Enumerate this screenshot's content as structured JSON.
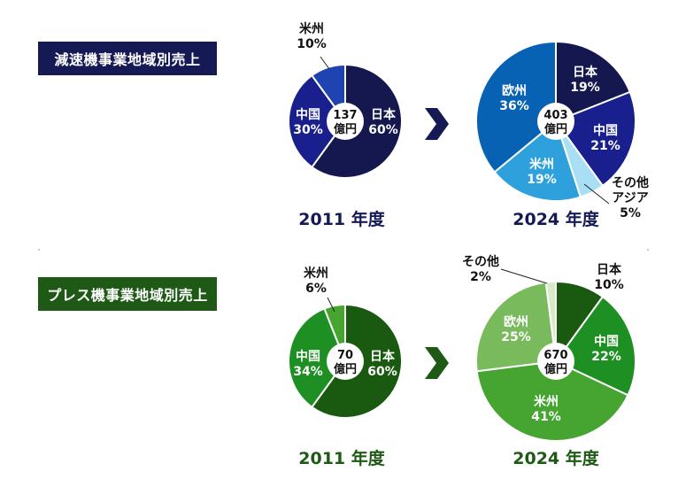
{
  "sections": {
    "top_title": "減速機事業地域別売上",
    "bottom_title": "プレス機事業地域別売上"
  },
  "colors": {
    "navy_dark": "#15174f",
    "navy_mid": "#1a1f8e",
    "blue_mid": "#2043b2",
    "blue_strong": "#0762b4",
    "blue_light": "#2ea1dc",
    "blue_pale": "#a9dff4",
    "green_dark": "#1a5a10",
    "green_mid": "#1e8f22",
    "green_bright": "#46a530",
    "green_soft": "#79ba5c",
    "green_pale": "#d6ecc5",
    "arrow_top": "#151a55",
    "arrow_bottom": "#1e5a16"
  },
  "chart_data": [
    {
      "type": "pie",
      "center_label": [
        "137",
        "億円"
      ],
      "year_label": "2011 年度",
      "slices": [
        {
          "name": "日本",
          "label": "60%",
          "value": 60,
          "color": "#15174f"
        },
        {
          "name": "中国",
          "label": "30%",
          "value": 30,
          "color": "#1a1f8e"
        },
        {
          "name": "米州",
          "label": "10%",
          "value": 10,
          "color": "#2043b2"
        }
      ]
    },
    {
      "type": "pie",
      "center_label": [
        "403",
        "億円"
      ],
      "year_label": "2024 年度",
      "slices": [
        {
          "name": "日本",
          "label": "19%",
          "value": 19,
          "color": "#15174f"
        },
        {
          "name": "中国",
          "label": "21%",
          "value": 21,
          "color": "#1a1f8e"
        },
        {
          "name": "その他アジア",
          "label": "5%",
          "value": 5,
          "color": "#a9dff4"
        },
        {
          "name": "米州",
          "label": "19%",
          "value": 19,
          "color": "#2ea1dc"
        },
        {
          "name": "欧州",
          "label": "36%",
          "value": 36,
          "color": "#0762b4"
        }
      ]
    },
    {
      "type": "pie",
      "center_label": [
        "70",
        "億円"
      ],
      "year_label": "2011 年度",
      "slices": [
        {
          "name": "日本",
          "label": "60%",
          "value": 60,
          "color": "#1a5a10"
        },
        {
          "name": "中国",
          "label": "34%",
          "value": 34,
          "color": "#1e8f22"
        },
        {
          "name": "米州",
          "label": "6%",
          "value": 6,
          "color": "#46a530"
        }
      ]
    },
    {
      "type": "pie",
      "center_label": [
        "670",
        "億円"
      ],
      "year_label": "2024 年度",
      "slices": [
        {
          "name": "日本",
          "label": "10%",
          "value": 10,
          "color": "#1a5a10"
        },
        {
          "name": "中国",
          "label": "22%",
          "value": 22,
          "color": "#1e8f22"
        },
        {
          "name": "米州",
          "label": "41%",
          "value": 41,
          "color": "#46a530"
        },
        {
          "name": "欧州",
          "label": "25%",
          "value": 25,
          "color": "#79ba5c"
        },
        {
          "name": "その他",
          "label": "2%",
          "value": 2,
          "color": "#d6ecc5"
        }
      ]
    }
  ]
}
